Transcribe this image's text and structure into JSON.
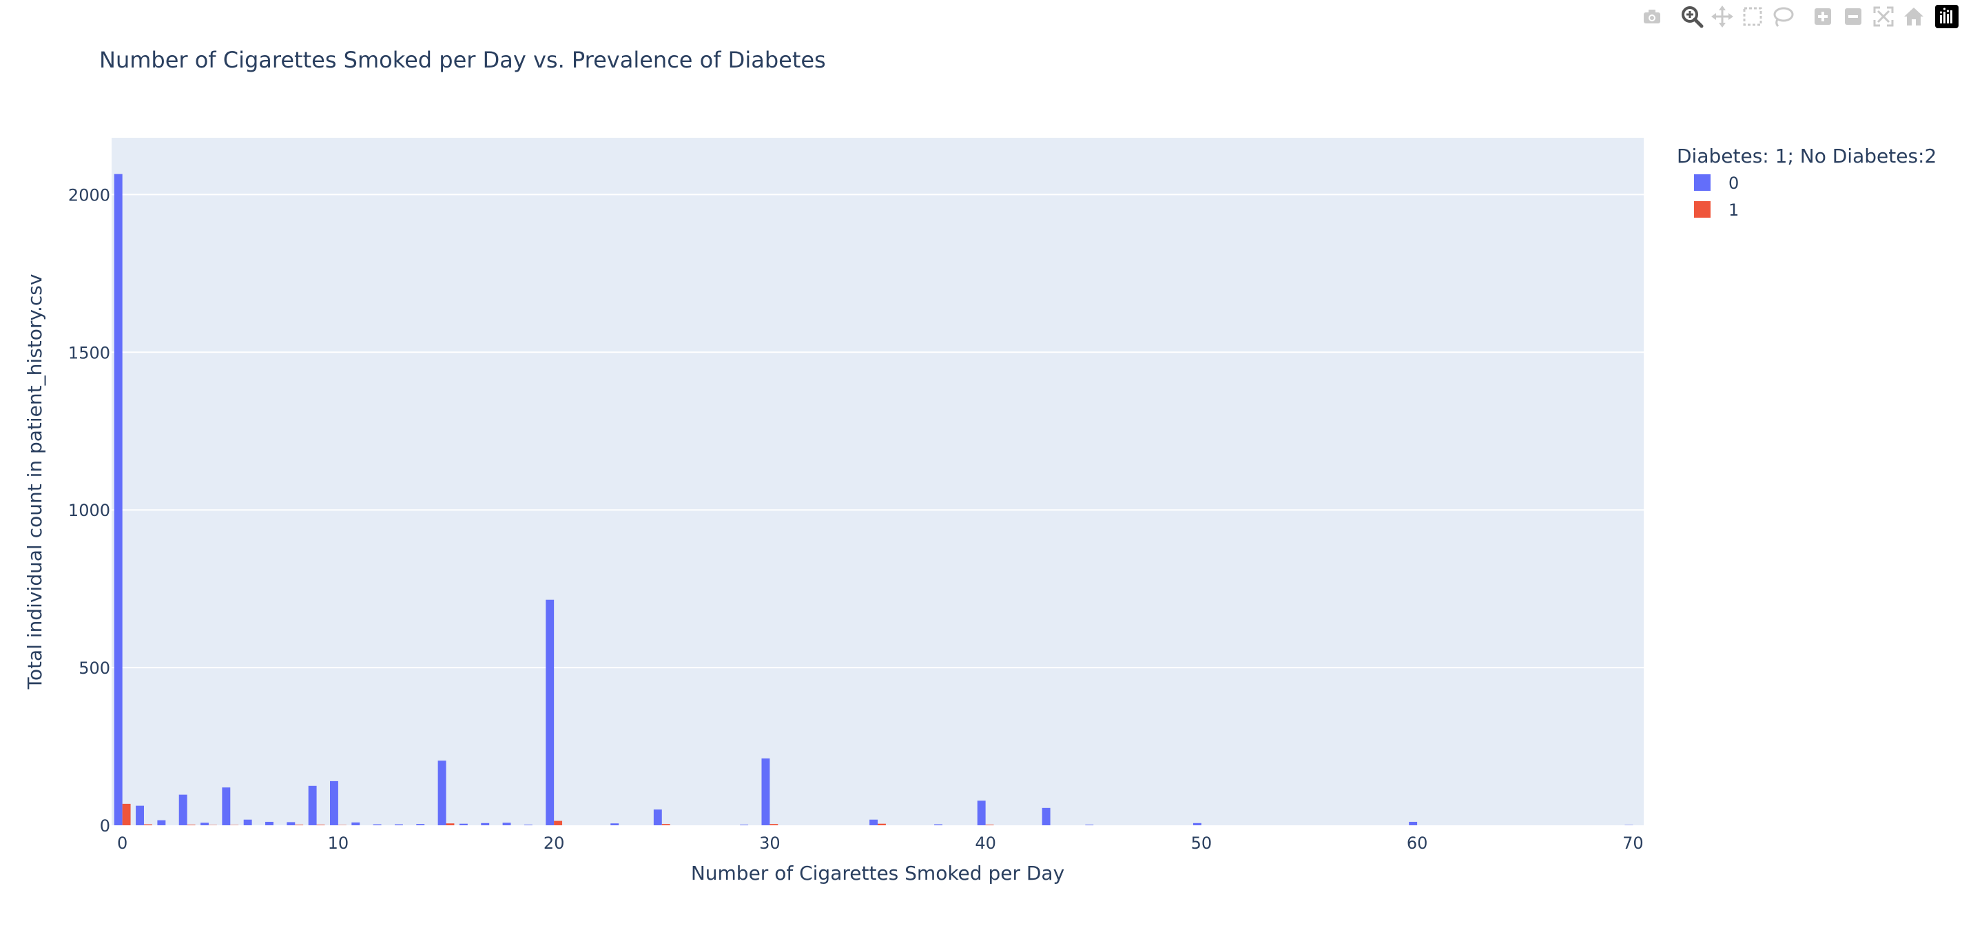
{
  "modebar": {
    "buttons": [
      "camera-icon",
      "zoom-icon",
      "pan-icon",
      "box-select-icon",
      "lasso-icon",
      "zoom-in-icon",
      "zoom-out-icon",
      "autoscale-icon",
      "reset-axes-icon"
    ],
    "logo": "plotly-logo-icon"
  },
  "colors": {
    "series0": "#636efa",
    "series1": "#ef553b",
    "plot_bg": "#e5ecf6",
    "grid": "#ffffff",
    "text": "#2a3f5f"
  },
  "chart_data": {
    "type": "bar",
    "title": "Number of Cigarettes Smoked per Day vs. Prevalence of Diabetes",
    "xlabel": "Number of Cigarettes Smoked per Day",
    "ylabel": "Total individual count in patient_history.csv",
    "xlim": [
      -0.5,
      70.5
    ],
    "ylim": [
      0,
      2180
    ],
    "xticks": [
      0,
      10,
      20,
      30,
      40,
      50,
      60,
      70
    ],
    "yticks": [
      0,
      500,
      1000,
      1500,
      2000
    ],
    "grid": true,
    "barmode": "group",
    "legend": {
      "title": "Diabetes: 1; No Diabetes:2",
      "position": "top-right"
    },
    "series": [
      {
        "name": "0",
        "color": "#636efa",
        "x": [
          0,
          1,
          2,
          3,
          4,
          5,
          6,
          7,
          8,
          9,
          10,
          11,
          12,
          13,
          14,
          15,
          16,
          17,
          18,
          19,
          20,
          23,
          25,
          29,
          30,
          35,
          38,
          40,
          43,
          45,
          50,
          60,
          70
        ],
        "values": [
          2065,
          62,
          16,
          97,
          8,
          120,
          18,
          11,
          10,
          125,
          140,
          9,
          3,
          3,
          4,
          205,
          5,
          7,
          8,
          2,
          715,
          6,
          50,
          2,
          212,
          18,
          3,
          78,
          55,
          2,
          7,
          11,
          1
        ]
      },
      {
        "name": "1",
        "color": "#ef553b",
        "x": [
          0,
          1,
          3,
          4,
          5,
          8,
          9,
          10,
          15,
          20,
          25,
          30,
          35,
          40
        ],
        "values": [
          68,
          3,
          2,
          1,
          1,
          2,
          2,
          1,
          6,
          14,
          4,
          4,
          5,
          2
        ]
      }
    ]
  }
}
